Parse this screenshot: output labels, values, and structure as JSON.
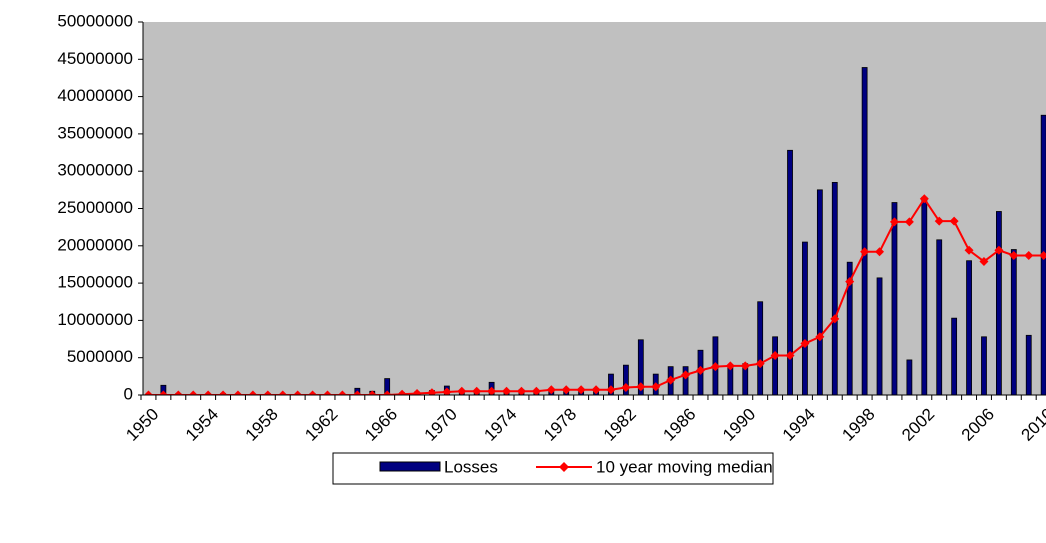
{
  "chart_data": {
    "type": "bar_line",
    "categories": [
      "1950",
      null,
      null,
      null,
      "1954",
      null,
      null,
      null,
      "1958",
      null,
      null,
      null,
      "1962",
      null,
      null,
      null,
      "1966",
      null,
      null,
      null,
      "1970",
      null,
      null,
      null,
      "1974",
      null,
      null,
      null,
      "1978",
      null,
      null,
      null,
      "1982",
      null,
      null,
      null,
      "1986",
      null,
      null,
      null,
      "1990",
      null,
      null,
      null,
      "1994",
      null,
      null,
      null,
      "1998",
      null,
      null,
      null,
      "2002",
      null,
      null,
      null,
      "2006",
      null,
      null,
      null,
      "2010"
    ],
    "series": [
      {
        "name": "Losses",
        "color": "#000080",
        "kind": "bar",
        "values": [
          0,
          1300000,
          200000,
          100000,
          100000,
          200000,
          100000,
          100000,
          200000,
          100000,
          100000,
          200000,
          100000,
          100000,
          900000,
          500000,
          2200000,
          300000,
          400000,
          600000,
          1200000,
          500000,
          500000,
          1700000,
          600000,
          700000,
          500000,
          600000,
          800000,
          700000,
          800000,
          2800000,
          4000000,
          7400000,
          2800000,
          3800000,
          3800000,
          6000000,
          7800000,
          4000000,
          4200000,
          12500000,
          7800000,
          32800000,
          20500000,
          27500000,
          28500000,
          17800000,
          43900000,
          15700000,
          25800000,
          4700000,
          26500000,
          20800000,
          10300000,
          18000000,
          7800000,
          24600000,
          19500000,
          8000000,
          37500000
        ]
      },
      {
        "name": "10 year moving median",
        "color": "#ff0000",
        "kind": "line",
        "values": [
          0,
          0,
          0,
          0,
          0,
          0,
          0,
          0,
          0,
          0,
          0,
          0,
          0,
          0,
          0,
          0,
          0,
          100000,
          200000,
          300000,
          400000,
          500000,
          500000,
          500000,
          500000,
          500000,
          500000,
          700000,
          700000,
          700000,
          700000,
          700000,
          1000000,
          1100000,
          1100000,
          2000000,
          2700000,
          3300000,
          3800000,
          3900000,
          3900000,
          4200000,
          5300000,
          5300000,
          6900000,
          7800000,
          10200000,
          15200000,
          19200000,
          19200000,
          23200000,
          23200000,
          26300000,
          23300000,
          23300000,
          19400000,
          17900000,
          19400000,
          18700000,
          18700000,
          18700000
        ]
      }
    ],
    "ylim": [
      0,
      50000000
    ],
    "yticks": [
      0,
      5000000,
      10000000,
      15000000,
      20000000,
      25000000,
      30000000,
      35000000,
      40000000,
      45000000,
      50000000
    ],
    "plot_background": "#c0c0c0",
    "legend": "bottom"
  }
}
